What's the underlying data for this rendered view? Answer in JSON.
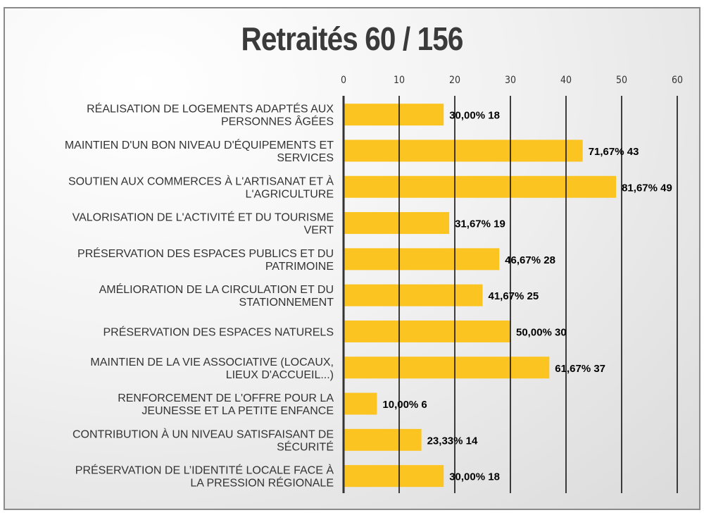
{
  "chart_data": {
    "type": "bar",
    "orientation": "horizontal",
    "title": "Retraités 60 / 156",
    "xlim": [
      0,
      60
    ],
    "xticks": [
      "0",
      "10",
      "20",
      "30",
      "40",
      "50",
      "60"
    ],
    "grid": true,
    "bar_color": "#FCC421",
    "categories": [
      [
        "RÉALISATION DE LOGEMENTS ADAPTÉS AUX",
        "PERSONNES ÂGÉES"
      ],
      [
        "MAINTIEN D'UN BON NIVEAU D'ÉQUIPEMENTS ET",
        "SERVICES"
      ],
      [
        "SOUTIEN AUX COMMERCES À L'ARTISANAT ET À",
        "L'AGRICULTURE"
      ],
      [
        "VALORISATION DE L'ACTIVITÉ ET DU TOURISME",
        "VERT"
      ],
      [
        "PRÉSERVATION DES ESPACES PUBLICS ET DU",
        "PATRIMOINE"
      ],
      [
        "AMÉLIORATION DE LA CIRCULATION ET DU",
        "STATIONNEMENT"
      ],
      [
        "PRÉSERVATION DES ESPACES NATURELS"
      ],
      [
        "MAINTIEN DE LA VIE ASSOCIATIVE (LOCAUX,",
        "LIEUX D'ACCUEIL...)"
      ],
      [
        "RENFORCEMENT DE L'OFFRE POUR LA",
        "JEUNESSE ET LA PETITE ENFANCE"
      ],
      [
        "CONTRIBUTION À UN NIVEAU SATISFAISANT DE",
        "SÉCURITÉ"
      ],
      [
        "PRÉSERVATION DE L’IDENTITÉ LOCALE FACE À",
        "LA PRESSION RÉGIONALE"
      ]
    ],
    "values": [
      18,
      43,
      49,
      19,
      28,
      25,
      30,
      37,
      6,
      14,
      18
    ],
    "data_labels": [
      "30,00% 18",
      "71,67% 43",
      "81,67% 49",
      "31,67% 19",
      "46,67% 28",
      "41,67% 25",
      "50,00% 30",
      "61,67% 37",
      "10,00% 6",
      "23,33% 14",
      "30,00% 18"
    ]
  }
}
